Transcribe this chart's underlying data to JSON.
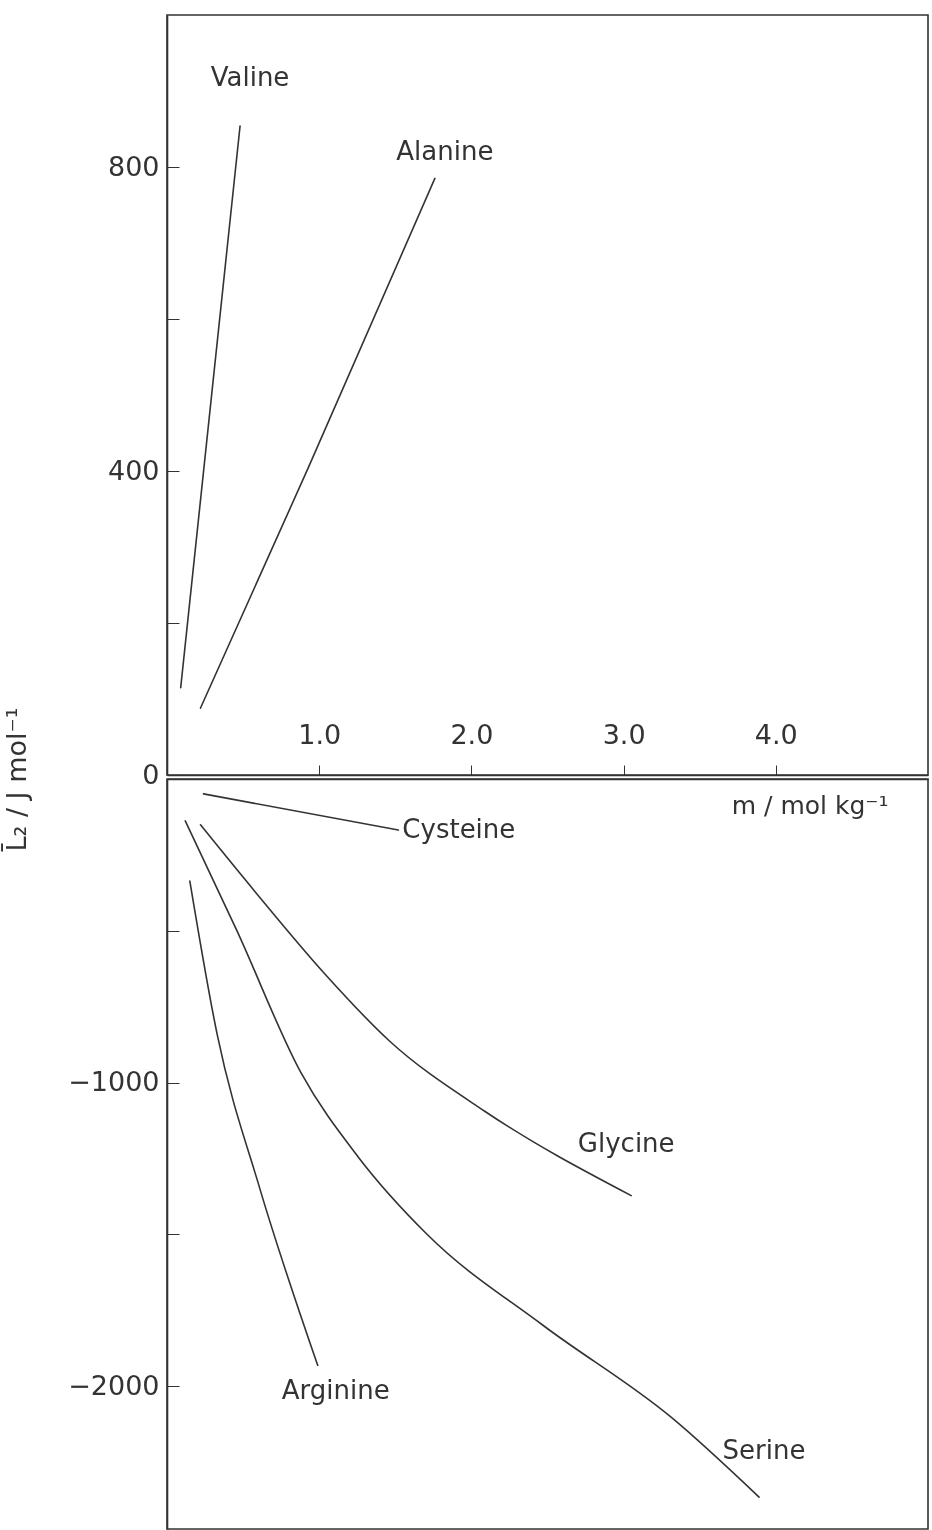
{
  "chart_data": [
    {
      "type": "line",
      "xlim": [
        0,
        5.0
      ],
      "xticks": [
        {
          "value": 1,
          "label": "1.0"
        },
        {
          "value": 2,
          "label": "2.0"
        },
        {
          "value": 3,
          "label": "3.0"
        },
        {
          "value": 4,
          "label": "4.0"
        }
      ],
      "ylim": [
        0,
        1000
      ],
      "yticks": [
        0,
        {
          "value": 200,
          "label": null
        },
        400,
        {
          "value": 600,
          "label": null
        },
        800
      ],
      "grid": false,
      "series": [
        {
          "name": "Valine",
          "color": "#333333",
          "x": [
            0.09,
            0.48
          ],
          "values": [
            115,
            854
          ]
        },
        {
          "name": "Alanine",
          "color": "#333333",
          "x": [
            0.22,
            0.93,
            1.76
          ],
          "values": [
            88,
            405,
            785
          ]
        }
      ]
    },
    {
      "type": "line",
      "xlabel": "m / mol kg⁻¹",
      "ylabel": "L̄₂ / J mol⁻¹",
      "xlim": [
        0,
        5.0
      ],
      "tick_labels": "y",
      "ylim": [
        -2470,
        0
      ],
      "yticks": [
        {
          "value": -2000,
          "label": "−2000"
        },
        {
          "value": -1500,
          "label": null
        },
        {
          "value": -1000,
          "label": "−1000"
        },
        {
          "value": -500,
          "label": null
        }
      ],
      "grid": false,
      "series": [
        {
          "name": "Cysteine",
          "color": "#333333",
          "x": [
            0.24,
            1.52
          ],
          "values": [
            -49,
            -168
          ]
        },
        {
          "name": "Glycine",
          "color": "#333333",
          "x": [
            0.22,
            0.58,
            1.03,
            1.46,
            2.09,
            3.05
          ],
          "values": [
            -151,
            -372,
            -638,
            -862,
            -1095,
            -1372
          ]
        },
        {
          "name": "Serine",
          "color": "#333333",
          "x": [
            0.12,
            0.46,
            0.88,
            1.26,
            1.71,
            2.47,
            3.32,
            3.89
          ],
          "values": [
            -138,
            -500,
            -967,
            -1247,
            -1500,
            -1799,
            -2105,
            -2365
          ]
        },
        {
          "name": "Arginine",
          "color": "#333333",
          "x": [
            0.15,
            0.33,
            0.61,
            0.99
          ],
          "values": [
            -336,
            -842,
            -1349,
            -1931
          ]
        }
      ]
    }
  ]
}
